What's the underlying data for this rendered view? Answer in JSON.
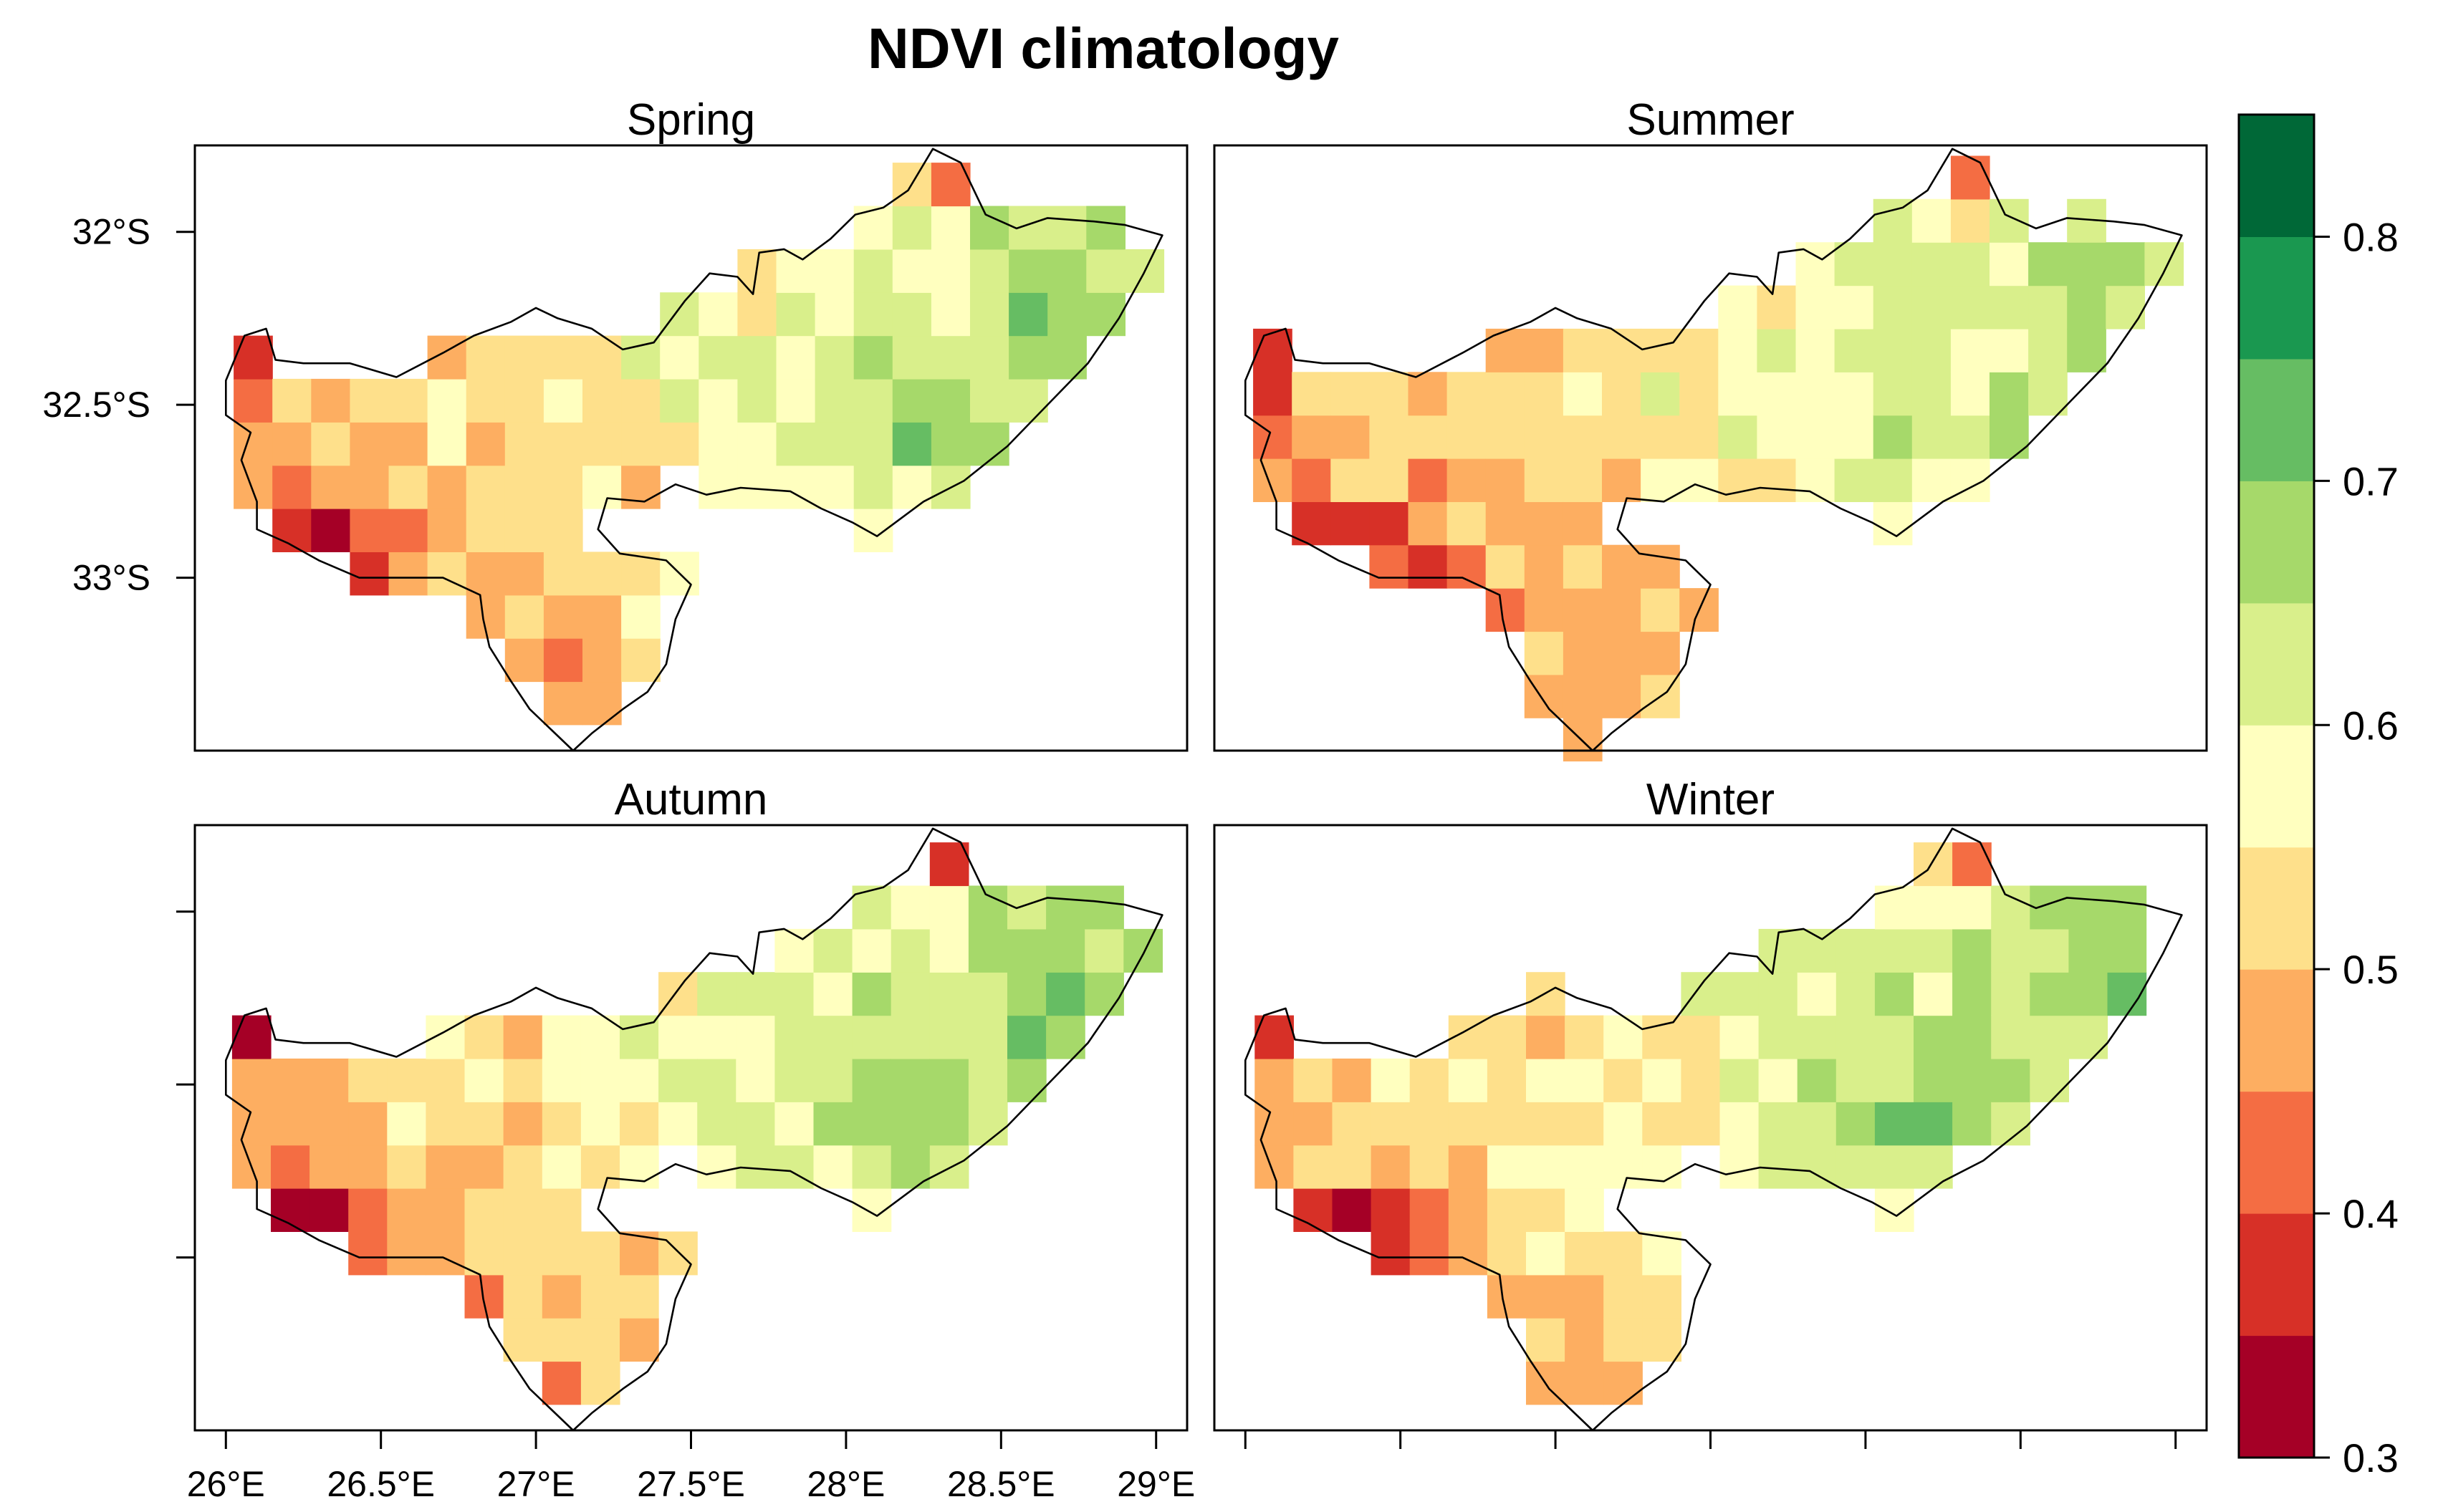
{
  "chart_data": {
    "type": "heatmap",
    "title": "NDVI climatology",
    "variable": "NDVI",
    "panels": [
      {
        "name": "Spring",
        "grid_offsets": {
          "lon": 0.0,
          "lat": 0.0
        }
      },
      {
        "name": "Summer",
        "grid_offsets": {
          "lon": 0.0,
          "lat": 0.02
        }
      },
      {
        "name": "Autumn",
        "grid_offsets": {
          "lon": -0.005,
          "lat": 0.0
        }
      },
      {
        "name": "Winter",
        "grid_offsets": {
          "lon": 0.005,
          "lat": 0.0
        }
      }
    ],
    "x_axis": {
      "range": [
        25.9,
        29.1
      ],
      "ticks": [
        26,
        26.5,
        27,
        27.5,
        28,
        28.5,
        29
      ],
      "tick_labels": [
        "26°E",
        "26.5°E",
        "27°E",
        "27.5°E",
        "28°E",
        "28.5°E",
        "29°E"
      ]
    },
    "y_axis": {
      "range": [
        -33.5,
        -31.75
      ],
      "ticks": [
        -32,
        -32.5,
        -33
      ],
      "tick_labels": [
        "32°S",
        "32.5°S",
        "33°S"
      ]
    },
    "colorbar": {
      "range": [
        0.3,
        0.85
      ],
      "tick_values": [
        0.3,
        0.4,
        0.5,
        0.6,
        0.7,
        0.8
      ],
      "tick_labels": [
        "0.3",
        "0.4",
        "0.5",
        "0.6",
        "0.7",
        "0.8"
      ],
      "breaks": [
        0.3,
        0.35,
        0.4,
        0.45,
        0.5,
        0.55,
        0.6,
        0.65,
        0.7,
        0.75,
        0.8,
        0.85
      ],
      "colors": [
        "#a50026",
        "#d73027",
        "#f46d43",
        "#fdae61",
        "#fee08b",
        "#ffffbf",
        "#d9ef8b",
        "#a6d96a",
        "#66bd63",
        "#1a9850",
        "#006837"
      ]
    },
    "region_outline_lonlat": [
      [
        26.0,
        -32.43
      ],
      [
        26.06,
        -32.3
      ],
      [
        26.13,
        -32.28
      ],
      [
        26.16,
        -32.37
      ],
      [
        26.25,
        -32.38
      ],
      [
        26.4,
        -32.38
      ],
      [
        26.55,
        -32.42
      ],
      [
        26.7,
        -32.35
      ],
      [
        26.8,
        -32.3
      ],
      [
        26.92,
        -32.26
      ],
      [
        27.0,
        -32.22
      ],
      [
        27.07,
        -32.25
      ],
      [
        27.18,
        -32.28
      ],
      [
        27.28,
        -32.34
      ],
      [
        27.38,
        -32.32
      ],
      [
        27.48,
        -32.2
      ],
      [
        27.56,
        -32.12
      ],
      [
        27.65,
        -32.13
      ],
      [
        27.7,
        -32.18
      ],
      [
        27.72,
        -32.06
      ],
      [
        27.8,
        -32.05
      ],
      [
        27.86,
        -32.08
      ],
      [
        27.95,
        -32.02
      ],
      [
        28.03,
        -31.95
      ],
      [
        28.12,
        -31.93
      ],
      [
        28.2,
        -31.88
      ],
      [
        28.28,
        -31.76
      ],
      [
        28.37,
        -31.8
      ],
      [
        28.45,
        -31.95
      ],
      [
        28.55,
        -31.99
      ],
      [
        28.65,
        -31.96
      ],
      [
        28.8,
        -31.97
      ],
      [
        28.9,
        -31.98
      ],
      [
        29.02,
        -32.01
      ],
      [
        28.96,
        -32.12
      ],
      [
        28.88,
        -32.25
      ],
      [
        28.78,
        -32.38
      ],
      [
        28.65,
        -32.5
      ],
      [
        28.52,
        -32.62
      ],
      [
        28.38,
        -32.72
      ],
      [
        28.25,
        -32.78
      ],
      [
        28.1,
        -32.88
      ],
      [
        28.02,
        -32.84
      ],
      [
        27.92,
        -32.8
      ],
      [
        27.82,
        -32.75
      ],
      [
        27.66,
        -32.74
      ],
      [
        27.55,
        -32.76
      ],
      [
        27.45,
        -32.73
      ],
      [
        27.35,
        -32.78
      ],
      [
        27.23,
        -32.77
      ],
      [
        27.2,
        -32.86
      ],
      [
        27.27,
        -32.93
      ],
      [
        27.42,
        -32.95
      ],
      [
        27.5,
        -33.02
      ],
      [
        27.45,
        -33.12
      ],
      [
        27.42,
        -33.25
      ],
      [
        27.36,
        -33.33
      ],
      [
        27.28,
        -33.38
      ],
      [
        27.18,
        -33.45
      ],
      [
        27.12,
        -33.5
      ],
      [
        27.05,
        -33.44
      ],
      [
        26.98,
        -33.38
      ],
      [
        26.92,
        -33.3
      ],
      [
        26.85,
        -33.2
      ],
      [
        26.83,
        -33.12
      ],
      [
        26.82,
        -33.05
      ],
      [
        26.7,
        -33.0
      ],
      [
        26.55,
        -33.0
      ],
      [
        26.43,
        -33.0
      ],
      [
        26.3,
        -32.95
      ],
      [
        26.2,
        -32.9
      ],
      [
        26.1,
        -32.86
      ],
      [
        26.1,
        -32.78
      ],
      [
        26.05,
        -32.66
      ],
      [
        26.08,
        -32.58
      ],
      [
        26.0,
        -32.53
      ],
      [
        26.0,
        -32.43
      ]
    ]
  }
}
